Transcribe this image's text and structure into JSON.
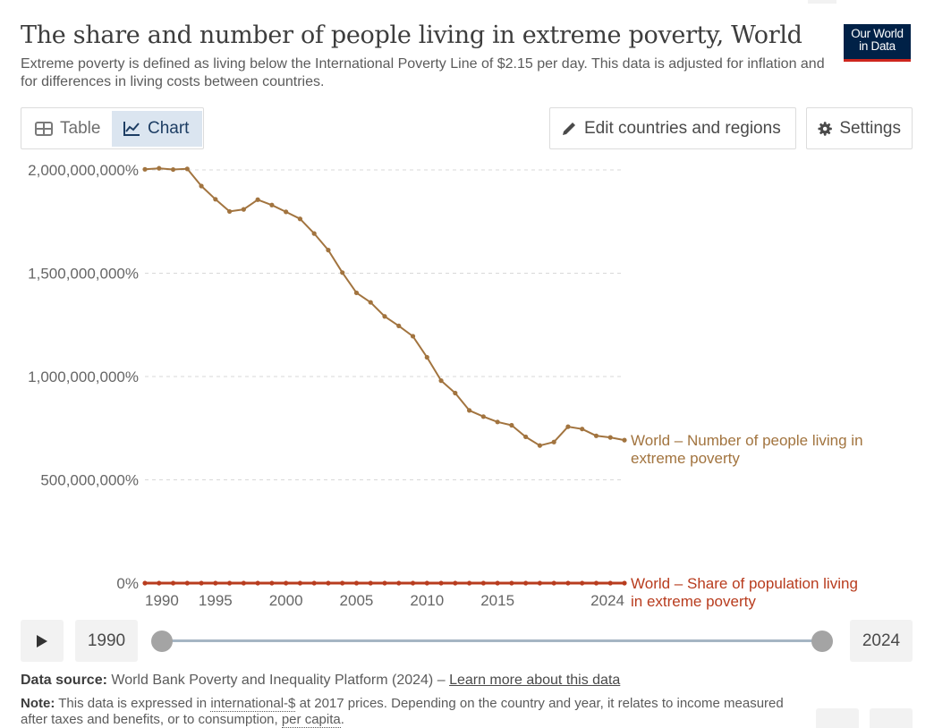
{
  "header": {
    "title": "The share and number of people living in extreme poverty, World",
    "subtitle": "Extreme poverty is defined as living below the International Poverty Line of $2.15 per day. This data is adjusted for inflation and for differences in living costs between countries.",
    "logo_line1": "Our World",
    "logo_line2": "in Data"
  },
  "toolbar": {
    "tab_table": "Table",
    "tab_chart": "Chart",
    "edit_label": "Edit countries and regions",
    "settings_label": "Settings"
  },
  "colors": {
    "number_series": "#a2743f",
    "share_series": "#b83c1e",
    "grid": "#d9d9d9",
    "axis_text": "#666666"
  },
  "chart_data": {
    "type": "line",
    "x": [
      1990,
      1991,
      1992,
      1993,
      1994,
      1995,
      1996,
      1997,
      1998,
      1999,
      2000,
      2001,
      2002,
      2003,
      2004,
      2005,
      2006,
      2007,
      2008,
      2009,
      2010,
      2011,
      2012,
      2013,
      2014,
      2015,
      2016,
      2017,
      2018,
      2019,
      2020,
      2021,
      2022,
      2023,
      2024
    ],
    "series": [
      {
        "name": "World – Number of people living in extreme poverty",
        "values": [
          2003000000,
          2008000000,
          2002000000,
          2005000000,
          1922000000,
          1858000000,
          1799000000,
          1809000000,
          1856000000,
          1830000000,
          1797000000,
          1763000000,
          1692000000,
          1612000000,
          1503000000,
          1405000000,
          1359000000,
          1291000000,
          1245000000,
          1195000000,
          1093000000,
          980000000,
          920000000,
          836000000,
          806000000,
          780000000,
          764000000,
          708000000,
          666000000,
          683000000,
          757000000,
          746000000,
          713000000,
          705000000,
          692000000
        ]
      },
      {
        "name": "World – Share of population living in extreme poverty",
        "values": [
          38,
          37,
          36,
          35,
          33,
          31,
          30,
          29,
          29,
          28,
          27,
          26,
          25,
          23,
          22,
          20,
          19,
          18,
          17,
          16,
          15,
          13,
          12,
          11,
          11,
          10,
          10,
          9,
          9,
          9,
          10,
          9,
          9,
          9,
          9
        ]
      }
    ],
    "xticks": [
      1990,
      1995,
      2000,
      2005,
      2010,
      2015,
      2024
    ],
    "yticks": [
      0,
      500000000,
      1000000000,
      1500000000,
      2000000000
    ],
    "ytick_labels": [
      "0%",
      "500,000,000%",
      "1,000,000,000%",
      "1,500,000,000%",
      "2,000,000,000%"
    ],
    "ylim": [
      0,
      2000000000
    ],
    "grid": true,
    "legend_placement": "inline-right"
  },
  "timeline": {
    "start_year": "1990",
    "end_year": "2024"
  },
  "footer": {
    "source_label": "Data source:",
    "source_text": "World Bank Poverty and Inequality Platform (2024) –",
    "source_link": "Learn more about this data",
    "note_label": "Note:",
    "note_text_1": "This data is expressed in",
    "note_link_1": "international-$",
    "note_text_2": "at 2017 prices. Depending on the country and year, it relates to income measured after taxes and benefits, or to consumption,",
    "note_link_2": "per capita",
    "note_end": "."
  }
}
